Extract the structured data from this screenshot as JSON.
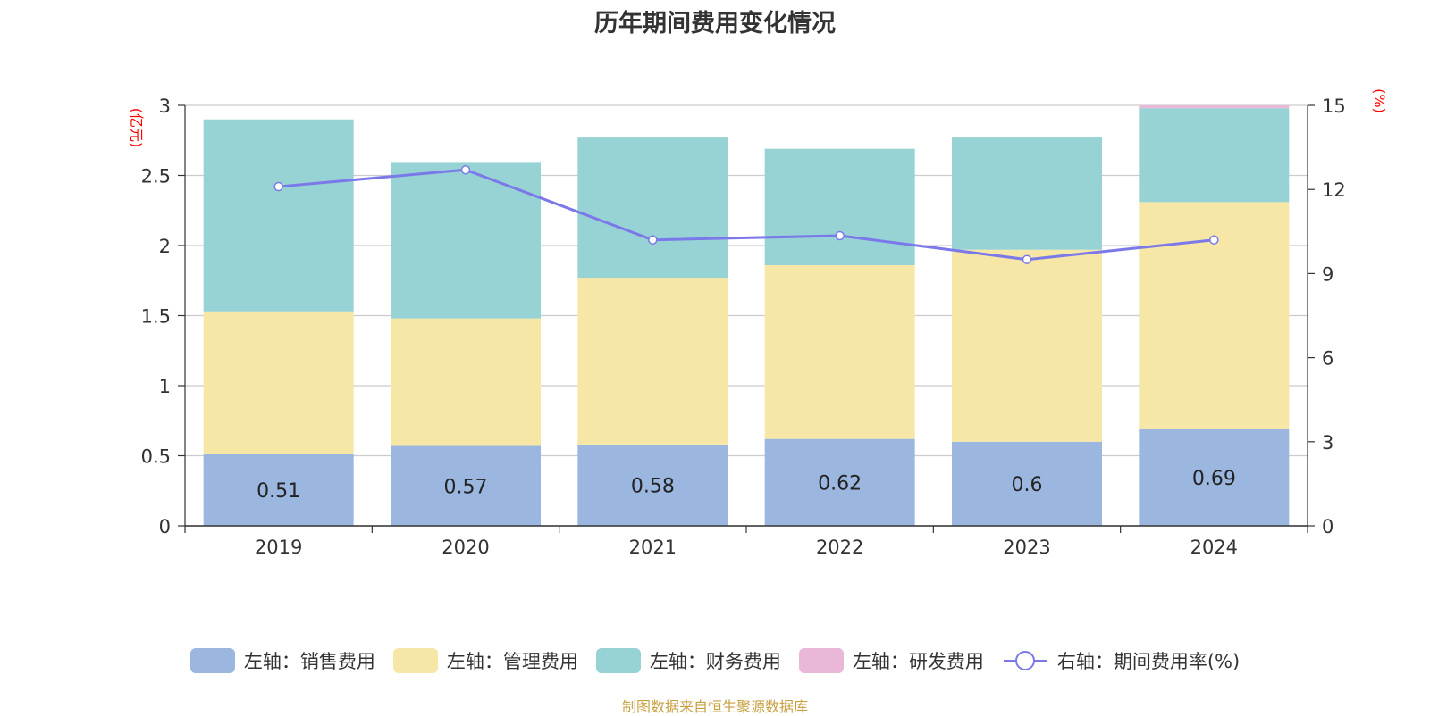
{
  "title": "历年期间费用变化情况",
  "left_axis_unit": "(亿元)",
  "right_axis_unit": "(%)",
  "source": "制图数据来自恒生聚源数据库",
  "chart_data": {
    "type": "bar",
    "stacked": true,
    "categories": [
      "2019",
      "2020",
      "2021",
      "2022",
      "2023",
      "2024"
    ],
    "ylim": [
      0,
      3
    ],
    "y_ticks": [
      "0",
      "0.5",
      "1",
      "1.5",
      "2",
      "2.5",
      "3"
    ],
    "y2lim": [
      0,
      15
    ],
    "y2_ticks": [
      "0",
      "3",
      "6",
      "9",
      "12",
      "15"
    ],
    "grid": true,
    "legend_position": "bottom",
    "series": [
      {
        "name": "左轴：销售费用",
        "axis": "left",
        "type": "bar",
        "color": "#9bb7e0",
        "values": [
          0.51,
          0.57,
          0.58,
          0.62,
          0.6,
          0.69
        ],
        "labels": [
          "0.51",
          "0.57",
          "0.58",
          "0.62",
          "0.6",
          "0.69"
        ]
      },
      {
        "name": "左轴：管理费用",
        "axis": "left",
        "type": "bar",
        "color": "#f7e7a6",
        "values": [
          1.02,
          0.91,
          1.19,
          1.24,
          1.37,
          1.62
        ]
      },
      {
        "name": "左轴：财务费用",
        "axis": "left",
        "type": "bar",
        "color": "#97d3d4",
        "values": [
          1.37,
          1.11,
          1.0,
          0.83,
          0.8,
          0.67
        ]
      },
      {
        "name": "左轴：研发费用",
        "axis": "left",
        "type": "bar",
        "color": "#e9b7d8",
        "values": [
          0,
          0,
          0,
          0,
          0,
          0.02
        ]
      },
      {
        "name": "右轴：期间费用率(%)",
        "axis": "right",
        "type": "line",
        "color": "#7b79ea",
        "values": [
          12.1,
          12.7,
          10.2,
          10.35,
          9.5,
          10.2
        ]
      }
    ]
  }
}
